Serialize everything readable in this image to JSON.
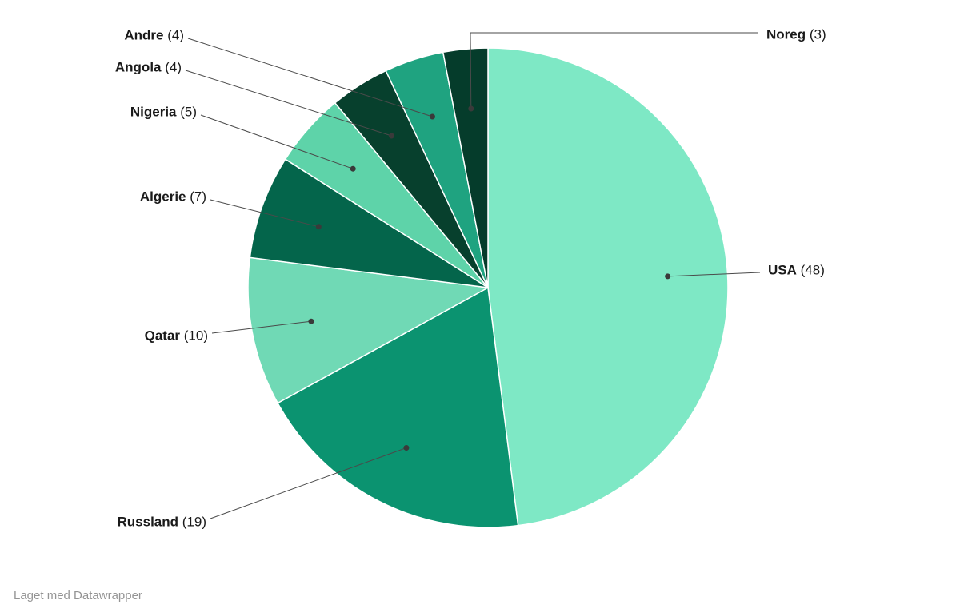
{
  "chart_data": {
    "type": "pie",
    "title": "",
    "direction": "clockwise",
    "start_angle_deg": 0,
    "total": 100,
    "label_format": "name (value)",
    "labels_outside_with_leader_lines": true,
    "legend_position": "none",
    "slices": [
      {
        "name": "USA",
        "value": 48,
        "label": "USA (48)",
        "color": "#7EE8C5"
      },
      {
        "name": "Russland",
        "value": 19,
        "label": "Russland (19)",
        "color": "#0B9370"
      },
      {
        "name": "Qatar",
        "value": 10,
        "label": "Qatar (10)",
        "color": "#70D9B5"
      },
      {
        "name": "Algerie",
        "value": 7,
        "label": "Algerie (7)",
        "color": "#04654B"
      },
      {
        "name": "Nigeria",
        "value": 5,
        "label": "Nigeria (5)",
        "color": "#5ED3A9"
      },
      {
        "name": "Angola",
        "value": 4,
        "label": "Angola (4)",
        "color": "#07402D"
      },
      {
        "name": "Andre",
        "value": 4,
        "label": "Andre (4)",
        "color": "#1FA380"
      },
      {
        "name": "Noreg",
        "value": 3,
        "label": "Noreg (3)",
        "color": "#053C2B"
      }
    ]
  },
  "colors": {
    "background": "#ffffff",
    "label_text": "#1a1a1a",
    "leader_line": "#4a4a4a",
    "label_dot": "#3a3a3a",
    "credit_text": "#949494"
  },
  "footer": {
    "credit": "Laget med Datawrapper"
  }
}
